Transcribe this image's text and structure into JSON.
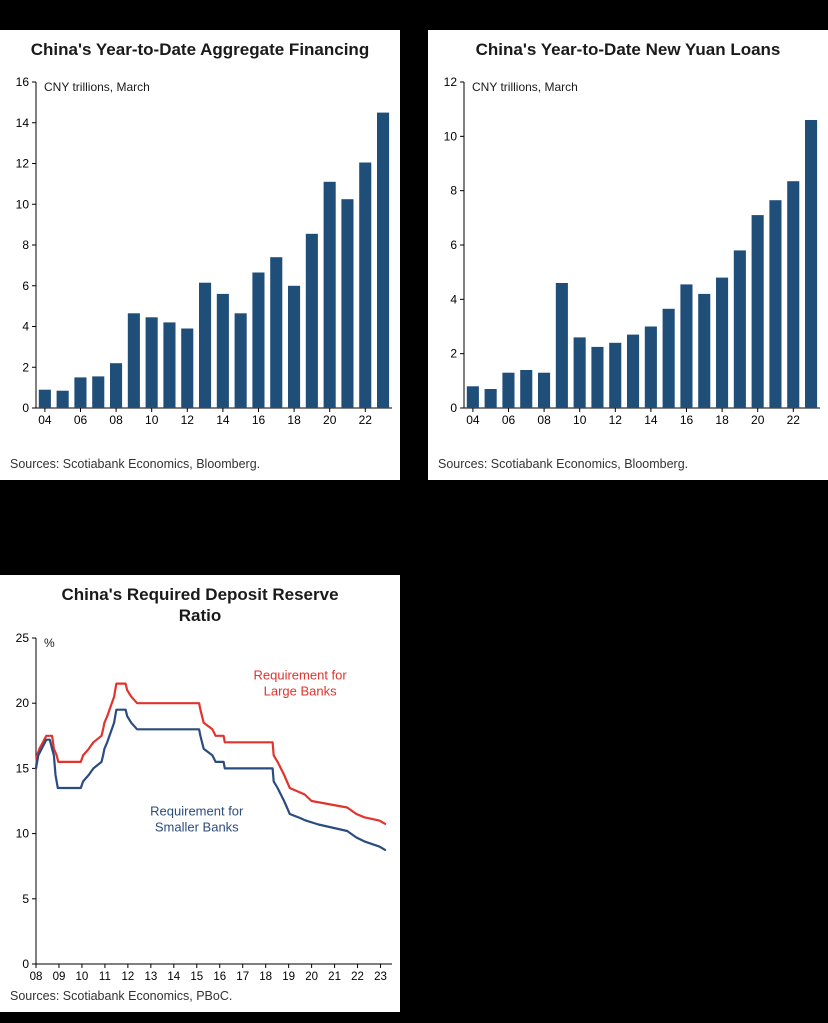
{
  "page": {
    "background": "#000000"
  },
  "chart_data": [
    {
      "type": "bar",
      "title": "China's Year-to-Date Aggregate Financing",
      "axis_note": "CNY trillions, March",
      "source": "Sources: Scotiabank Economics, Bloomberg.",
      "bar_color": "#1F4E79",
      "ylim": [
        0,
        16
      ],
      "ytick_step": 2,
      "label_every": 2,
      "grid": false,
      "categories": [
        "04",
        "05",
        "06",
        "07",
        "08",
        "09",
        "10",
        "11",
        "12",
        "13",
        "14",
        "15",
        "16",
        "17",
        "18",
        "19",
        "20",
        "21",
        "22",
        "23"
      ],
      "values": [
        0.9,
        0.85,
        1.5,
        1.55,
        2.2,
        4.65,
        4.45,
        4.2,
        3.9,
        6.15,
        5.6,
        4.65,
        6.65,
        7.4,
        6.0,
        8.55,
        11.1,
        10.25,
        12.05,
        14.5
      ]
    },
    {
      "type": "bar",
      "title": "China's Year-to-Date New Yuan Loans",
      "axis_note": "CNY trillions, March",
      "source": "Sources: Scotiabank Economics, Bloomberg.",
      "bar_color": "#1F4E79",
      "ylim": [
        0,
        12
      ],
      "ytick_step": 2,
      "label_every": 2,
      "grid": false,
      "categories": [
        "04",
        "05",
        "06",
        "07",
        "08",
        "09",
        "10",
        "11",
        "12",
        "13",
        "14",
        "15",
        "16",
        "17",
        "18",
        "19",
        "20",
        "21",
        "22",
        "23"
      ],
      "values": [
        0.8,
        0.7,
        1.3,
        1.4,
        1.3,
        4.6,
        2.6,
        2.25,
        2.4,
        2.7,
        3.0,
        3.65,
        4.55,
        4.2,
        4.8,
        5.8,
        7.1,
        7.65,
        8.35,
        10.6
      ]
    },
    {
      "type": "line",
      "title": "China's Required Deposit Reserve Ratio",
      "axis_note": "%",
      "source": "Sources: Scotiabank Economics, PBoC.",
      "ylim": [
        0,
        25
      ],
      "ytick_step": 5,
      "xlim": [
        2008,
        2023.5
      ],
      "grid": false,
      "legend_position": "annotations-on-plot",
      "xticks": [
        {
          "v": 2008,
          "label": "08"
        },
        {
          "v": 2009,
          "label": "09"
        },
        {
          "v": 2010,
          "label": "10"
        },
        {
          "v": 2011,
          "label": "11"
        },
        {
          "v": 2012,
          "label": "12"
        },
        {
          "v": 2013,
          "label": "13"
        },
        {
          "v": 2014,
          "label": "14"
        },
        {
          "v": 2015,
          "label": "15"
        },
        {
          "v": 2016,
          "label": "16"
        },
        {
          "v": 2017,
          "label": "17"
        },
        {
          "v": 2018,
          "label": "18"
        },
        {
          "v": 2019,
          "label": "19"
        },
        {
          "v": 2020,
          "label": "20"
        },
        {
          "v": 2021,
          "label": "21"
        },
        {
          "v": 2022,
          "label": "22"
        },
        {
          "v": 2023,
          "label": "23"
        }
      ],
      "series": [
        {
          "name": "Requirement for Large Banks",
          "color": "#E2332D",
          "points": [
            [
              2008.0,
              15.0
            ],
            [
              2008.05,
              16.0
            ],
            [
              2008.15,
              16.5
            ],
            [
              2008.3,
              17.0
            ],
            [
              2008.45,
              17.5
            ],
            [
              2008.7,
              17.5
            ],
            [
              2008.78,
              16.5
            ],
            [
              2008.9,
              16.0
            ],
            [
              2008.97,
              15.5
            ],
            [
              2009.95,
              15.5
            ],
            [
              2010.05,
              16.0
            ],
            [
              2010.3,
              16.5
            ],
            [
              2010.5,
              17.0
            ],
            [
              2010.85,
              17.5
            ],
            [
              2010.92,
              18.0
            ],
            [
              2010.98,
              18.5
            ],
            [
              2011.1,
              19.0
            ],
            [
              2011.2,
              19.5
            ],
            [
              2011.3,
              20.0
            ],
            [
              2011.4,
              20.5
            ],
            [
              2011.45,
              21.0
            ],
            [
              2011.5,
              21.5
            ],
            [
              2011.9,
              21.5
            ],
            [
              2011.97,
              21.0
            ],
            [
              2012.15,
              20.5
            ],
            [
              2012.4,
              20.0
            ],
            [
              2015.1,
              20.0
            ],
            [
              2015.16,
              19.5
            ],
            [
              2015.3,
              18.5
            ],
            [
              2015.68,
              18.0
            ],
            [
              2015.82,
              17.5
            ],
            [
              2016.17,
              17.5
            ],
            [
              2016.22,
              17.0
            ],
            [
              2018.3,
              17.0
            ],
            [
              2018.35,
              16.0
            ],
            [
              2018.52,
              15.5
            ],
            [
              2018.8,
              14.5
            ],
            [
              2019.05,
              13.5
            ],
            [
              2019.7,
              13.0
            ],
            [
              2020.0,
              12.5
            ],
            [
              2021.55,
              12.0
            ],
            [
              2021.95,
              11.5
            ],
            [
              2022.3,
              11.25
            ],
            [
              2022.95,
              11.0
            ],
            [
              2023.2,
              10.75
            ]
          ]
        },
        {
          "name": "Requirement for Smaller Banks",
          "color": "#2B4C7E",
          "points": [
            [
              2008.0,
              15.0
            ],
            [
              2008.1,
              16.0
            ],
            [
              2008.25,
              16.5
            ],
            [
              2008.45,
              17.2
            ],
            [
              2008.6,
              17.2
            ],
            [
              2008.7,
              16.5
            ],
            [
              2008.78,
              16.0
            ],
            [
              2008.85,
              14.5
            ],
            [
              2008.95,
              13.5
            ],
            [
              2009.95,
              13.5
            ],
            [
              2010.05,
              14.0
            ],
            [
              2010.3,
              14.5
            ],
            [
              2010.5,
              15.0
            ],
            [
              2010.85,
              15.5
            ],
            [
              2010.92,
              16.0
            ],
            [
              2010.98,
              16.5
            ],
            [
              2011.1,
              17.0
            ],
            [
              2011.2,
              17.5
            ],
            [
              2011.3,
              18.0
            ],
            [
              2011.4,
              18.5
            ],
            [
              2011.45,
              19.0
            ],
            [
              2011.5,
              19.5
            ],
            [
              2011.9,
              19.5
            ],
            [
              2011.97,
              19.0
            ],
            [
              2012.15,
              18.5
            ],
            [
              2012.4,
              18.0
            ],
            [
              2015.1,
              18.0
            ],
            [
              2015.16,
              17.5
            ],
            [
              2015.3,
              16.5
            ],
            [
              2015.68,
              16.0
            ],
            [
              2015.82,
              15.5
            ],
            [
              2016.17,
              15.5
            ],
            [
              2016.22,
              15.0
            ],
            [
              2018.3,
              15.0
            ],
            [
              2018.35,
              14.0
            ],
            [
              2018.52,
              13.5
            ],
            [
              2018.8,
              12.5
            ],
            [
              2019.05,
              11.5
            ],
            [
              2019.5,
              11.2
            ],
            [
              2019.75,
              11.0
            ],
            [
              2020.3,
              10.7
            ],
            [
              2021.55,
              10.2
            ],
            [
              2021.95,
              9.7
            ],
            [
              2022.3,
              9.4
            ],
            [
              2022.95,
              9.0
            ],
            [
              2023.2,
              8.75
            ]
          ]
        }
      ],
      "annotations": [
        {
          "x": 2019.5,
          "y": 21.8,
          "color": "#E2332D",
          "lines": [
            "Requirement for",
            "Large Banks"
          ]
        },
        {
          "x": 2015.0,
          "y": 11.4,
          "color": "#2B4C7E",
          "lines": [
            "Requirement for",
            "Smaller Banks"
          ]
        }
      ]
    }
  ]
}
